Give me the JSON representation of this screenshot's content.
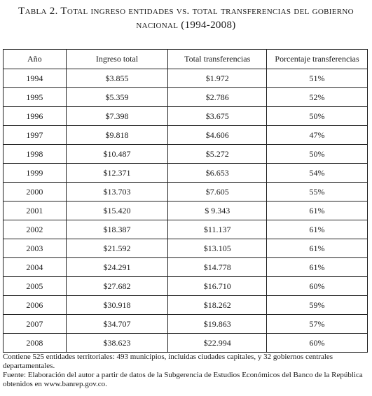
{
  "title": {
    "line1": "Tabla 2. Total ingreso entidades vs. total transferencias del gobierno",
    "line2": "nacional (1994-2008)"
  },
  "table": {
    "headers": [
      "Año",
      "Ingreso total",
      "Total transferencias",
      "Porcentaje transferencias"
    ],
    "rows": [
      [
        "1994",
        "$3.855",
        "$1.972",
        "51%"
      ],
      [
        "1995",
        "$5.359",
        "$2.786",
        "52%"
      ],
      [
        "1996",
        "$7.398",
        "$3.675",
        "50%"
      ],
      [
        "1997",
        "$9.818",
        "$4.606",
        "47%"
      ],
      [
        "1998",
        "$10.487",
        "$5.272",
        "50%"
      ],
      [
        "1999",
        "$12.371",
        "$6.653",
        "54%"
      ],
      [
        "2000",
        "$13.703",
        "$7.605",
        "55%"
      ],
      [
        "2001",
        "$15.420",
        "$ 9.343",
        "61%"
      ],
      [
        "2002",
        "$18.387",
        "$11.137",
        "61%"
      ],
      [
        "2003",
        "$21.592",
        "$13.105",
        "61%"
      ],
      [
        "2004",
        "$24.291",
        "$14.778",
        "61%"
      ],
      [
        "2005",
        "$27.682",
        "$16.710",
        "60%"
      ],
      [
        "2006",
        "$30.918",
        "$18.262",
        "59%"
      ],
      [
        "2007",
        "$34.707",
        "$19.863",
        "57%"
      ],
      [
        "2008",
        "$38.623",
        "$22.994",
        "60%"
      ]
    ]
  },
  "notes": {
    "note1": "Contiene 525 entidades territoriales: 493 municipios, incluidas ciudades capitales, y 32 gobiernos centrales departamentales.",
    "note2": "Fuente: Elaboración del autor a partir de datos de la Subgerencia de Estudios Económicos del Banco de la República obtenidos en www.banrep.gov.co."
  }
}
